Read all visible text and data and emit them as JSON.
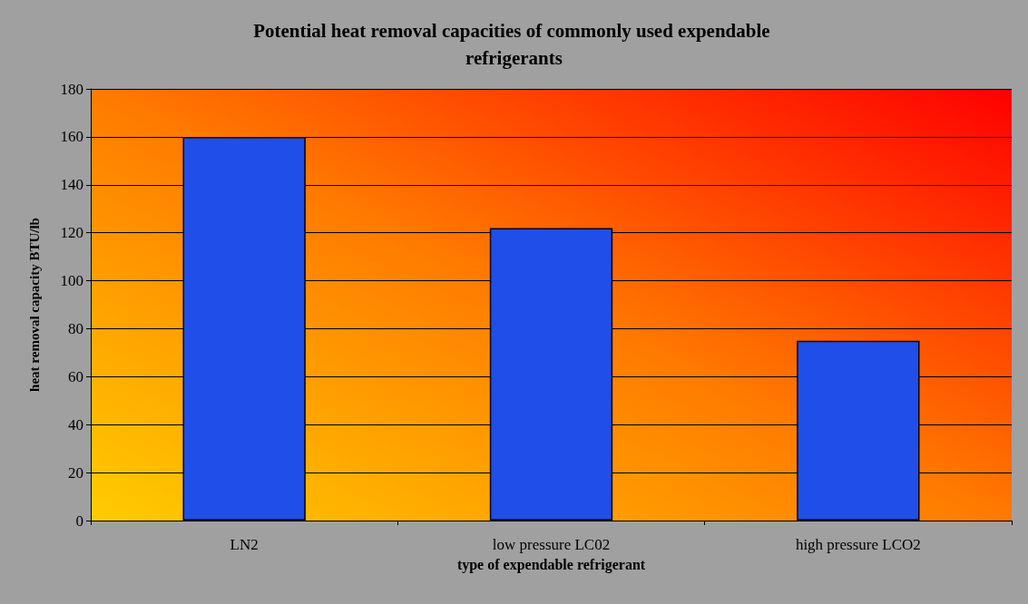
{
  "chart_data": {
    "type": "bar",
    "title": "Potential heat removal capacities of commonly used expendable refrigerants",
    "xlabel": "type of expendable refrigerant",
    "ylabel": "heat removal capacity BTU/lb",
    "categories": [
      "LN2",
      "low pressure LC02",
      "high pressure LCO2"
    ],
    "values": [
      160,
      122,
      75
    ],
    "color": "#1f4fe8",
    "ylim": [
      0,
      180
    ],
    "yticks": [
      0,
      20,
      40,
      60,
      80,
      100,
      120,
      140,
      160,
      180
    ],
    "grid": "y"
  }
}
